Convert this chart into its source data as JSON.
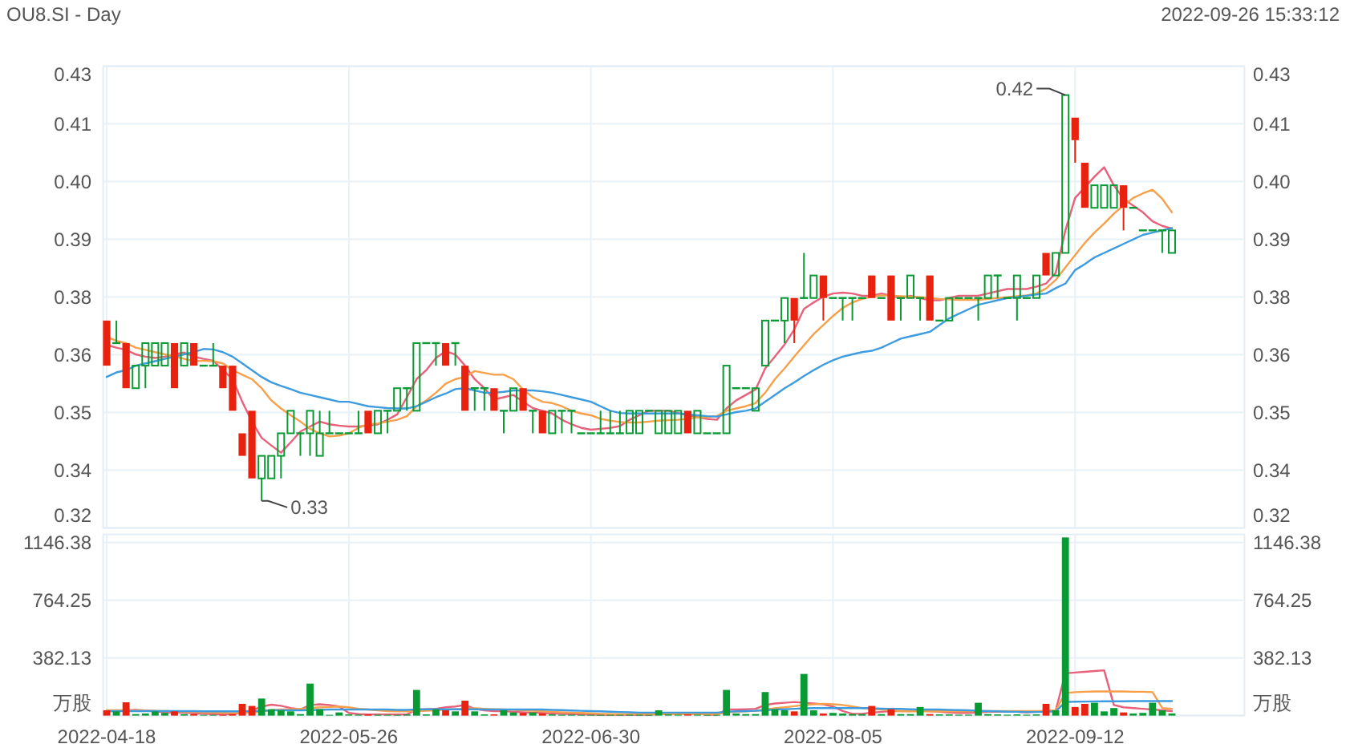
{
  "chart_data": [
    {
      "type": "candlestick",
      "title": "OU8.SI - Day",
      "annotations": [
        "2022-09-26 15:33:12",
        "0.33",
        "0.42"
      ],
      "categories": [
        "2022-04-18",
        null,
        null,
        null,
        null,
        null,
        null,
        null,
        null,
        null,
        null,
        null,
        null,
        null,
        null,
        null,
        null,
        null,
        null,
        null,
        null,
        null,
        null,
        null,
        null,
        "2022-05-26",
        null,
        null,
        null,
        null,
        null,
        null,
        null,
        null,
        null,
        null,
        null,
        null,
        null,
        null,
        null,
        null,
        null,
        null,
        null,
        null,
        null,
        null,
        null,
        null,
        "2022-06-30",
        null,
        null,
        null,
        null,
        null,
        null,
        null,
        null,
        null,
        null,
        null,
        null,
        null,
        null,
        null,
        null,
        null,
        null,
        null,
        null,
        null,
        null,
        null,
        null,
        "2022-08-05",
        null,
        null,
        null,
        null,
        null,
        null,
        null,
        null,
        null,
        null,
        null,
        null,
        null,
        null,
        null,
        null,
        null,
        null,
        null,
        null,
        null,
        null,
        null,
        null,
        "2022-09-12",
        null,
        null,
        null,
        null,
        null,
        null,
        null,
        null,
        null,
        null
      ],
      "ohlc": [
        [
          0.37,
          0.37,
          0.36,
          0.36
        ],
        [
          0.365,
          0.37,
          0.365,
          0.365
        ],
        [
          0.365,
          0.365,
          0.355,
          0.355
        ],
        [
          0.355,
          0.36,
          0.355,
          0.36
        ],
        [
          0.36,
          0.365,
          0.355,
          0.365
        ],
        [
          0.36,
          0.365,
          0.36,
          0.365
        ],
        [
          0.36,
          0.365,
          0.36,
          0.365
        ],
        [
          0.365,
          0.365,
          0.355,
          0.355
        ],
        [
          0.36,
          0.365,
          0.36,
          0.365
        ],
        [
          0.365,
          0.365,
          0.36,
          0.36
        ],
        [
          0.36,
          0.36,
          0.36,
          0.36
        ],
        [
          0.36,
          0.365,
          0.36,
          0.36
        ],
        [
          0.36,
          0.36,
          0.355,
          0.355
        ],
        [
          0.36,
          0.36,
          0.35,
          0.35
        ],
        [
          0.345,
          0.345,
          0.34,
          0.34
        ],
        [
          0.35,
          0.35,
          0.335,
          0.335
        ],
        [
          0.335,
          0.34,
          0.33,
          0.34
        ],
        [
          0.335,
          0.34,
          0.335,
          0.34
        ],
        [
          0.34,
          0.345,
          0.335,
          0.345
        ],
        [
          0.345,
          0.35,
          0.345,
          0.35
        ],
        [
          0.345,
          0.345,
          0.34,
          0.345
        ],
        [
          0.345,
          0.35,
          0.34,
          0.35
        ],
        [
          0.34,
          0.35,
          0.34,
          0.345
        ],
        [
          0.345,
          0.35,
          0.345,
          0.345
        ],
        [
          0.345,
          0.345,
          0.345,
          0.345
        ],
        [
          0.345,
          0.345,
          0.345,
          0.345
        ],
        [
          0.345,
          0.35,
          0.345,
          0.345
        ],
        [
          0.35,
          0.35,
          0.345,
          0.345
        ],
        [
          0.345,
          0.35,
          0.345,
          0.35
        ],
        [
          0.35,
          0.35,
          0.345,
          0.35
        ],
        [
          0.35,
          0.355,
          0.35,
          0.355
        ],
        [
          0.355,
          0.355,
          0.35,
          0.355
        ],
        [
          0.35,
          0.365,
          0.35,
          0.365
        ],
        [
          0.365,
          0.365,
          0.365,
          0.365
        ],
        [
          0.365,
          0.365,
          0.36,
          0.365
        ],
        [
          0.365,
          0.365,
          0.36,
          0.36
        ],
        [
          0.365,
          0.365,
          0.36,
          0.365
        ],
        [
          0.36,
          0.36,
          0.35,
          0.35
        ],
        [
          0.355,
          0.355,
          0.35,
          0.355
        ],
        [
          0.355,
          0.355,
          0.35,
          0.355
        ],
        [
          0.355,
          0.355,
          0.35,
          0.35
        ],
        [
          0.35,
          0.35,
          0.345,
          0.35
        ],
        [
          0.35,
          0.355,
          0.35,
          0.355
        ],
        [
          0.355,
          0.355,
          0.35,
          0.35
        ],
        [
          0.35,
          0.35,
          0.345,
          0.35
        ],
        [
          0.35,
          0.35,
          0.345,
          0.345
        ],
        [
          0.345,
          0.35,
          0.345,
          0.35
        ],
        [
          0.35,
          0.35,
          0.345,
          0.35
        ],
        [
          0.35,
          0.35,
          0.345,
          0.35
        ],
        [
          0.345,
          0.345,
          0.345,
          0.345
        ],
        [
          0.345,
          0.345,
          0.345,
          0.345
        ],
        [
          0.345,
          0.35,
          0.345,
          0.345
        ],
        [
          0.345,
          0.35,
          0.345,
          0.345
        ],
        [
          0.345,
          0.35,
          0.345,
          0.345
        ],
        [
          0.345,
          0.35,
          0.345,
          0.35
        ],
        [
          0.345,
          0.35,
          0.345,
          0.35
        ],
        [
          0.35,
          0.35,
          0.35,
          0.35
        ],
        [
          0.345,
          0.35,
          0.345,
          0.35
        ],
        [
          0.345,
          0.35,
          0.345,
          0.35
        ],
        [
          0.345,
          0.35,
          0.345,
          0.35
        ],
        [
          0.35,
          0.35,
          0.345,
          0.345
        ],
        [
          0.345,
          0.35,
          0.345,
          0.35
        ],
        [
          0.345,
          0.345,
          0.345,
          0.345
        ],
        [
          0.345,
          0.345,
          0.345,
          0.345
        ],
        [
          0.345,
          0.36,
          0.345,
          0.36
        ],
        [
          0.355,
          0.355,
          0.355,
          0.355
        ],
        [
          0.355,
          0.355,
          0.355,
          0.355
        ],
        [
          0.35,
          0.355,
          0.35,
          0.355
        ],
        [
          0.36,
          0.37,
          0.36,
          0.37
        ],
        [
          0.37,
          0.37,
          0.37,
          0.37
        ],
        [
          0.37,
          0.375,
          0.365,
          0.375
        ],
        [
          0.375,
          0.375,
          0.365,
          0.37
        ],
        [
          0.375,
          0.385,
          0.375,
          0.375
        ],
        [
          0.375,
          0.38,
          0.375,
          0.38
        ],
        [
          0.38,
          0.38,
          0.37,
          0.375
        ],
        [
          0.375,
          0.375,
          0.375,
          0.375
        ],
        [
          0.375,
          0.375,
          0.37,
          0.375
        ],
        [
          0.375,
          0.375,
          0.37,
          0.375
        ],
        [
          0.375,
          0.375,
          0.375,
          0.375
        ],
        [
          0.38,
          0.38,
          0.375,
          0.375
        ],
        [
          0.375,
          0.375,
          0.375,
          0.375
        ],
        [
          0.38,
          0.38,
          0.37,
          0.37
        ],
        [
          0.375,
          0.375,
          0.37,
          0.375
        ],
        [
          0.375,
          0.38,
          0.375,
          0.38
        ],
        [
          0.375,
          0.375,
          0.37,
          0.375
        ],
        [
          0.38,
          0.38,
          0.37,
          0.37
        ],
        [
          0.37,
          0.37,
          0.37,
          0.37
        ],
        [
          0.37,
          0.375,
          0.37,
          0.375
        ],
        [
          0.375,
          0.375,
          0.375,
          0.375
        ],
        [
          0.375,
          0.375,
          0.375,
          0.375
        ],
        [
          0.375,
          0.375,
          0.37,
          0.375
        ],
        [
          0.375,
          0.38,
          0.375,
          0.38
        ],
        [
          0.38,
          0.38,
          0.375,
          0.38
        ],
        [
          0.375,
          0.375,
          0.375,
          0.375
        ],
        [
          0.375,
          0.38,
          0.37,
          0.38
        ],
        [
          0.375,
          0.375,
          0.375,
          0.375
        ],
        [
          0.375,
          0.38,
          0.375,
          0.38
        ],
        [
          0.385,
          0.385,
          0.38,
          0.38
        ],
        [
          0.38,
          0.385,
          0.38,
          0.385
        ],
        [
          0.385,
          0.42,
          0.385,
          0.42
        ],
        [
          0.415,
          0.415,
          0.405,
          0.41
        ],
        [
          0.405,
          0.405,
          0.395,
          0.395
        ],
        [
          0.395,
          0.4,
          0.395,
          0.4
        ],
        [
          0.395,
          0.4,
          0.395,
          0.4
        ],
        [
          0.395,
          0.4,
          0.395,
          0.4
        ],
        [
          0.4,
          0.4,
          0.39,
          0.395
        ],
        [
          0.395,
          0.395,
          0.395,
          0.395
        ],
        [
          0.39,
          0.39,
          0.39,
          0.39
        ],
        [
          0.39,
          0.39,
          0.39,
          0.39
        ],
        [
          0.39,
          0.39,
          0.385,
          0.39
        ],
        [
          0.385,
          0.39,
          0.385,
          0.39
        ]
      ],
      "colors": [
        "#e8220e",
        "#0a9a34",
        "#e8220e",
        "#0a9a34",
        "#0a9a34",
        "#0a9a34",
        "#0a9a34",
        "#e8220e",
        "#0a9a34",
        "#e8220e",
        "#0a9a34",
        "#0a9a34",
        "#e8220e",
        "#e8220e",
        "#e8220e",
        "#e8220e",
        "#0a9a34",
        "#0a9a34",
        "#0a9a34",
        "#0a9a34",
        "#0a9a34",
        "#0a9a34",
        "#0a9a34",
        "#0a9a34",
        "#0a9a34",
        "#0a9a34",
        "#0a9a34",
        "#e8220e",
        "#0a9a34",
        "#0a9a34",
        "#0a9a34",
        "#0a9a34",
        "#0a9a34",
        "#0a9a34",
        "#0a9a34",
        "#e8220e",
        "#0a9a34",
        "#e8220e",
        "#0a9a34",
        "#0a9a34",
        "#e8220e",
        "#0a9a34",
        "#0a9a34",
        "#e8220e",
        "#0a9a34",
        "#e8220e",
        "#0a9a34",
        "#0a9a34",
        "#0a9a34",
        "#0a9a34",
        "#0a9a34",
        "#0a9a34",
        "#0a9a34",
        "#0a9a34",
        "#0a9a34",
        "#0a9a34",
        "#0a9a34",
        "#0a9a34",
        "#0a9a34",
        "#0a9a34",
        "#e8220e",
        "#0a9a34",
        "#0a9a34",
        "#0a9a34",
        "#0a9a34",
        "#0a9a34",
        "#0a9a34",
        "#0a9a34",
        "#0a9a34",
        "#0a9a34",
        "#0a9a34",
        "#e8220e",
        "#0a9a34",
        "#0a9a34",
        "#e8220e",
        "#0a9a34",
        "#0a9a34",
        "#0a9a34",
        "#0a9a34",
        "#e8220e",
        "#0a9a34",
        "#e8220e",
        "#0a9a34",
        "#0a9a34",
        "#0a9a34",
        "#e8220e",
        "#0a9a34",
        "#0a9a34",
        "#0a9a34",
        "#0a9a34",
        "#0a9a34",
        "#0a9a34",
        "#0a9a34",
        "#0a9a34",
        "#0a9a34",
        "#0a9a34",
        "#0a9a34",
        "#e8220e",
        "#0a9a34",
        "#0a9a34",
        "#e8220e",
        "#e8220e",
        "#0a9a34",
        "#0a9a34",
        "#0a9a34",
        "#e8220e",
        "#0a9a34",
        "#0a9a34",
        "#0a9a34",
        "#0a9a34",
        "#0a9a34"
      ],
      "series": [
        {
          "type": "line",
          "color": "#e8607a",
          "values": [
            0.3646,
            0.364,
            0.3635,
            0.3625,
            0.362,
            0.3617,
            0.362,
            0.3625,
            0.3629,
            0.362,
            0.3615,
            0.3611,
            0.359,
            0.357,
            0.352,
            0.3476,
            0.344,
            0.3423,
            0.3407,
            0.343,
            0.3454,
            0.3465,
            0.3476,
            0.347,
            0.3467,
            0.3465,
            0.3465,
            0.3467,
            0.347,
            0.348,
            0.3492,
            0.353,
            0.357,
            0.359,
            0.3617,
            0.3632,
            0.3625,
            0.36,
            0.357,
            0.355,
            0.3525,
            0.353,
            0.3535,
            0.352,
            0.3506,
            0.35,
            0.3494,
            0.348,
            0.347,
            0.3462,
            0.3458,
            0.346,
            0.3462,
            0.3466,
            0.348,
            0.349,
            0.35,
            0.35,
            0.35,
            0.3495,
            0.349,
            0.3486,
            0.3482,
            0.348,
            0.3505,
            0.3523,
            0.3535,
            0.3547,
            0.3594,
            0.362,
            0.3647,
            0.368,
            0.3726,
            0.374,
            0.3753,
            0.376,
            0.3762,
            0.376,
            0.3755,
            0.3755,
            0.376,
            0.3755,
            0.375,
            0.3755,
            0.375,
            0.3745,
            0.3745,
            0.375,
            0.3755,
            0.3755,
            0.3755,
            0.376,
            0.3765,
            0.377,
            0.377,
            0.377,
            0.3775,
            0.3782,
            0.3806,
            0.39,
            0.3972,
            0.3995,
            0.4019,
            0.404,
            0.4,
            0.397,
            0.3955,
            0.394,
            0.392,
            0.391,
            0.3904
          ]
        },
        {
          "type": "line",
          "color": "#f7a04b",
          "values": [
            0.3664,
            0.3655,
            0.365,
            0.364,
            0.3635,
            0.363,
            0.3625,
            0.362,
            0.3615,
            0.361,
            0.3611,
            0.361,
            0.3605,
            0.359,
            0.358,
            0.357,
            0.355,
            0.3523,
            0.3505,
            0.349,
            0.3476,
            0.346,
            0.345,
            0.3443,
            0.3445,
            0.345,
            0.3462,
            0.347,
            0.3472,
            0.3476,
            0.348,
            0.3488,
            0.351,
            0.3523,
            0.354,
            0.356,
            0.357,
            0.3575,
            0.3588,
            0.3584,
            0.358,
            0.358,
            0.357,
            0.3547,
            0.353,
            0.352,
            0.3517,
            0.351,
            0.35,
            0.3494,
            0.349,
            0.3482,
            0.3478,
            0.3475,
            0.3474,
            0.3474,
            0.3476,
            0.3478,
            0.3479,
            0.348,
            0.3482,
            0.3485,
            0.3486,
            0.3488,
            0.35,
            0.3505,
            0.351,
            0.3517,
            0.354,
            0.357,
            0.3594,
            0.362,
            0.3645,
            0.367,
            0.369,
            0.371,
            0.3728,
            0.374,
            0.3748,
            0.3753,
            0.3756,
            0.3755,
            0.3754,
            0.3753,
            0.3752,
            0.375,
            0.3748,
            0.3747,
            0.3746,
            0.3746,
            0.3746,
            0.3748,
            0.375,
            0.3752,
            0.3754,
            0.3756,
            0.376,
            0.3771,
            0.379,
            0.3818,
            0.3845,
            0.3872,
            0.3895,
            0.3915,
            0.3937,
            0.3955,
            0.3972,
            0.3982,
            0.399,
            0.397,
            0.394
          ]
        },
        {
          "type": "line",
          "color": "#3d9be0",
          "values": [
            0.3575,
            0.3585,
            0.359,
            0.36,
            0.3605,
            0.361,
            0.3615,
            0.362,
            0.3625,
            0.363,
            0.3637,
            0.3636,
            0.363,
            0.362,
            0.3605,
            0.359,
            0.3575,
            0.3563,
            0.3555,
            0.3548,
            0.354,
            0.3535,
            0.353,
            0.3525,
            0.352,
            0.352,
            0.3515,
            0.351,
            0.3508,
            0.3506,
            0.3505,
            0.3505,
            0.351,
            0.352,
            0.353,
            0.3538,
            0.3548,
            0.355,
            0.3545,
            0.354,
            0.354,
            0.3542,
            0.3545,
            0.3545,
            0.3545,
            0.3543,
            0.354,
            0.3535,
            0.353,
            0.3525,
            0.352,
            0.351,
            0.35,
            0.3495,
            0.3494,
            0.3494,
            0.3494,
            0.3494,
            0.3494,
            0.3494,
            0.3492,
            0.349,
            0.3488,
            0.3487,
            0.3492,
            0.3497,
            0.35,
            0.3505,
            0.352,
            0.3535,
            0.355,
            0.3563,
            0.3577,
            0.359,
            0.3602,
            0.3612,
            0.362,
            0.3625,
            0.363,
            0.3633,
            0.364,
            0.365,
            0.366,
            0.3665,
            0.367,
            0.3675,
            0.369,
            0.3705,
            0.3715,
            0.3725,
            0.3735,
            0.374,
            0.3745,
            0.375,
            0.3752,
            0.3755,
            0.3758,
            0.376,
            0.3772,
            0.3782,
            0.3812,
            0.3825,
            0.384,
            0.385,
            0.386,
            0.387,
            0.388,
            0.389,
            0.3895,
            0.39,
            0.3905
          ]
        }
      ],
      "ylim": [
        0.324,
        0.4264
      ],
      "yticks": [
        {
          "value": 0.324,
          "label": "0.32"
        },
        {
          "value": 0.3368,
          "label": "0.34"
        },
        {
          "value": 0.3496,
          "label": "0.35"
        },
        {
          "value": 0.3624,
          "label": "0.36"
        },
        {
          "value": 0.3752,
          "label": "0.38"
        },
        {
          "value": 0.388,
          "label": "0.39"
        },
        {
          "value": 0.4008,
          "label": "0.40"
        },
        {
          "value": 0.4136,
          "label": "0.41"
        },
        {
          "value": 0.4264,
          "label": "0.43"
        }
      ],
      "y2lim": [
        0.324,
        0.4264
      ],
      "y2ticks": [
        {
          "value": 0.324,
          "label": "0.32"
        },
        {
          "value": 0.3368,
          "label": "0.34"
        },
        {
          "value": 0.3496,
          "label": "0.35"
        },
        {
          "value": 0.3624,
          "label": "0.36"
        },
        {
          "value": 0.3752,
          "label": "0.38"
        },
        {
          "value": 0.388,
          "label": "0.39"
        },
        {
          "value": 0.4008,
          "label": "0.40"
        },
        {
          "value": 0.4136,
          "label": "0.41"
        },
        {
          "value": 0.4264,
          "label": "0.43"
        }
      ],
      "grid": true,
      "tick_labels": "y"
    },
    {
      "type": "bar",
      "categories": [
        "2022-04-18",
        null,
        null,
        null,
        null,
        null,
        null,
        null,
        null,
        null,
        null,
        null,
        null,
        null,
        null,
        null,
        null,
        null,
        null,
        null,
        null,
        null,
        null,
        null,
        null,
        "2022-05-26",
        null,
        null,
        null,
        null,
        null,
        null,
        null,
        null,
        null,
        null,
        null,
        null,
        null,
        null,
        null,
        null,
        null,
        null,
        null,
        null,
        null,
        null,
        null,
        null,
        "2022-06-30",
        null,
        null,
        null,
        null,
        null,
        null,
        null,
        null,
        null,
        null,
        null,
        null,
        null,
        null,
        null,
        null,
        null,
        null,
        null,
        null,
        null,
        null,
        null,
        null,
        "2022-08-05",
        null,
        null,
        null,
        null,
        null,
        null,
        null,
        null,
        null,
        null,
        null,
        null,
        null,
        null,
        null,
        null,
        null,
        null,
        null,
        null,
        null,
        null,
        null,
        null,
        "2022-09-12",
        null,
        null,
        null,
        null,
        null,
        null,
        null,
        null,
        null,
        null
      ],
      "values": [
        35,
        28,
        88,
        10,
        14,
        28,
        18,
        28,
        10,
        10,
        5,
        5,
        5,
        10,
        78,
        64,
        113,
        42,
        35,
        28,
        10,
        212,
        42,
        5,
        21,
        8,
        6,
        8,
        6,
        5,
        5,
        8,
        170,
        8,
        42,
        35,
        28,
        99,
        28,
        8,
        8,
        35,
        21,
        18,
        21,
        14,
        8,
        6,
        6,
        5,
        5,
        5,
        5,
        5,
        6,
        6,
        5,
        35,
        8,
        6,
        8,
        6,
        5,
        5,
        170,
        14,
        10,
        10,
        156,
        42,
        35,
        28,
        276,
        35,
        14,
        18,
        14,
        10,
        10,
        64,
        10,
        42,
        10,
        10,
        57,
        10,
        8,
        8,
        6,
        6,
        85,
        10,
        8,
        6,
        8,
        6,
        8,
        78,
        35,
        1180,
        57,
        78,
        85,
        28,
        50,
        21,
        14,
        18,
        85,
        35,
        14
      ],
      "colors": [
        "#e8220e",
        "#0a9a34",
        "#e8220e",
        "#0a9a34",
        "#0a9a34",
        "#0a9a34",
        "#0a9a34",
        "#e8220e",
        "#0a9a34",
        "#e8220e",
        "#0a9a34",
        "#0a9a34",
        "#e8220e",
        "#e8220e",
        "#e8220e",
        "#e8220e",
        "#0a9a34",
        "#0a9a34",
        "#0a9a34",
        "#0a9a34",
        "#0a9a34",
        "#0a9a34",
        "#0a9a34",
        "#0a9a34",
        "#0a9a34",
        "#0a9a34",
        "#0a9a34",
        "#e8220e",
        "#0a9a34",
        "#0a9a34",
        "#0a9a34",
        "#0a9a34",
        "#0a9a34",
        "#0a9a34",
        "#0a9a34",
        "#e8220e",
        "#0a9a34",
        "#e8220e",
        "#0a9a34",
        "#0a9a34",
        "#e8220e",
        "#0a9a34",
        "#0a9a34",
        "#e8220e",
        "#0a9a34",
        "#e8220e",
        "#0a9a34",
        "#0a9a34",
        "#0a9a34",
        "#0a9a34",
        "#0a9a34",
        "#0a9a34",
        "#0a9a34",
        "#0a9a34",
        "#0a9a34",
        "#0a9a34",
        "#0a9a34",
        "#0a9a34",
        "#0a9a34",
        "#0a9a34",
        "#e8220e",
        "#0a9a34",
        "#0a9a34",
        "#0a9a34",
        "#0a9a34",
        "#0a9a34",
        "#0a9a34",
        "#0a9a34",
        "#0a9a34",
        "#0a9a34",
        "#0a9a34",
        "#e8220e",
        "#0a9a34",
        "#0a9a34",
        "#e8220e",
        "#0a9a34",
        "#0a9a34",
        "#0a9a34",
        "#0a9a34",
        "#e8220e",
        "#0a9a34",
        "#e8220e",
        "#0a9a34",
        "#0a9a34",
        "#0a9a34",
        "#e8220e",
        "#0a9a34",
        "#0a9a34",
        "#0a9a34",
        "#0a9a34",
        "#0a9a34",
        "#0a9a34",
        "#0a9a34",
        "#0a9a34",
        "#0a9a34",
        "#0a9a34",
        "#0a9a34",
        "#e8220e",
        "#0a9a34",
        "#0a9a34",
        "#e8220e",
        "#e8220e",
        "#0a9a34",
        "#0a9a34",
        "#0a9a34",
        "#e8220e",
        "#0a9a34",
        "#0a9a34",
        "#0a9a34",
        "#0a9a34",
        "#0a9a34"
      ],
      "series": [
        {
          "type": "line",
          "color": "#e8607a",
          "values": [
            30,
            30,
            35,
            38,
            34,
            30,
            20,
            22,
            20,
            15,
            12,
            10,
            8,
            10,
            20,
            35,
            60,
            72,
            65,
            50,
            40,
            70,
            75,
            70,
            60,
            18,
            10,
            8,
            8,
            8,
            7,
            8,
            40,
            42,
            45,
            55,
            60,
            70,
            45,
            35,
            30,
            30,
            25,
            22,
            20,
            18,
            15,
            12,
            10,
            8,
            7,
            6,
            5,
            5,
            6,
            6,
            6,
            10,
            12,
            12,
            12,
            12,
            7,
            6,
            40,
            40,
            42,
            45,
            70,
            80,
            85,
            90,
            85,
            80,
            75,
            60,
            30,
            12,
            12,
            20,
            25,
            30,
            30,
            30,
            35,
            30,
            25,
            20,
            18,
            18,
            22,
            25,
            25,
            25,
            25,
            22,
            25,
            30,
            35,
            280,
            285,
            290,
            295,
            300,
            70,
            55,
            50,
            45,
            40,
            35,
            30
          ]
        },
        {
          "type": "line",
          "color": "#f7a04b",
          "values": [
            35,
            35,
            35,
            34,
            33,
            32,
            30,
            28,
            26,
            24,
            22,
            20,
            18,
            17,
            18,
            22,
            28,
            35,
            40,
            42,
            45,
            50,
            55,
            58,
            60,
            55,
            45,
            40,
            35,
            30,
            28,
            28,
            30,
            32,
            35,
            40,
            42,
            45,
            48,
            45,
            42,
            40,
            38,
            35,
            32,
            28,
            25,
            22,
            20,
            18,
            15,
            12,
            10,
            10,
            9,
            9,
            9,
            9,
            10,
            10,
            10,
            10,
            10,
            10,
            22,
            25,
            28,
            32,
            40,
            48,
            55,
            62,
            70,
            75,
            78,
            75,
            70,
            60,
            50,
            45,
            40,
            35,
            30,
            28,
            28,
            28,
            28,
            28,
            28,
            28,
            30,
            30,
            30,
            30,
            30,
            30,
            30,
            32,
            35,
            150,
            155,
            158,
            160,
            160,
            160,
            160,
            158,
            158,
            155,
            50,
            45
          ]
        },
        {
          "type": "line",
          "color": "#3d9be0",
          "values": [
            30,
            30,
            30,
            30,
            30,
            30,
            30,
            30,
            30,
            30,
            28,
            28,
            28,
            28,
            28,
            30,
            32,
            35,
            35,
            35,
            35,
            36,
            38,
            40,
            40,
            40,
            40,
            40,
            40,
            40,
            38,
            38,
            40,
            42,
            42,
            42,
            42,
            42,
            42,
            40,
            40,
            40,
            40,
            40,
            40,
            40,
            38,
            36,
            34,
            32,
            30,
            28,
            26,
            24,
            22,
            20,
            20,
            20,
            20,
            20,
            20,
            20,
            20,
            20,
            25,
            28,
            30,
            32,
            35,
            40,
            42,
            45,
            48,
            50,
            50,
            50,
            50,
            50,
            50,
            48,
            46,
            45,
            44,
            42,
            40,
            40,
            40,
            38,
            36,
            35,
            32,
            30,
            28,
            26,
            25,
            24,
            24,
            25,
            28,
            90,
            92,
            93,
            94,
            95,
            95,
            95,
            96,
            96,
            96,
            96,
            96
          ]
        }
      ],
      "ylim": [
        0,
        1200
      ],
      "yticks": [
        {
          "value": 0,
          "label": "万股"
        },
        382.13,
        764.25,
        1146.38
      ],
      "y2lim": [
        0,
        1200
      ],
      "y2ticks": [
        {
          "value": 0,
          "label": "万股"
        },
        382.13,
        764.25,
        1146.38
      ],
      "grid": true
    }
  ]
}
